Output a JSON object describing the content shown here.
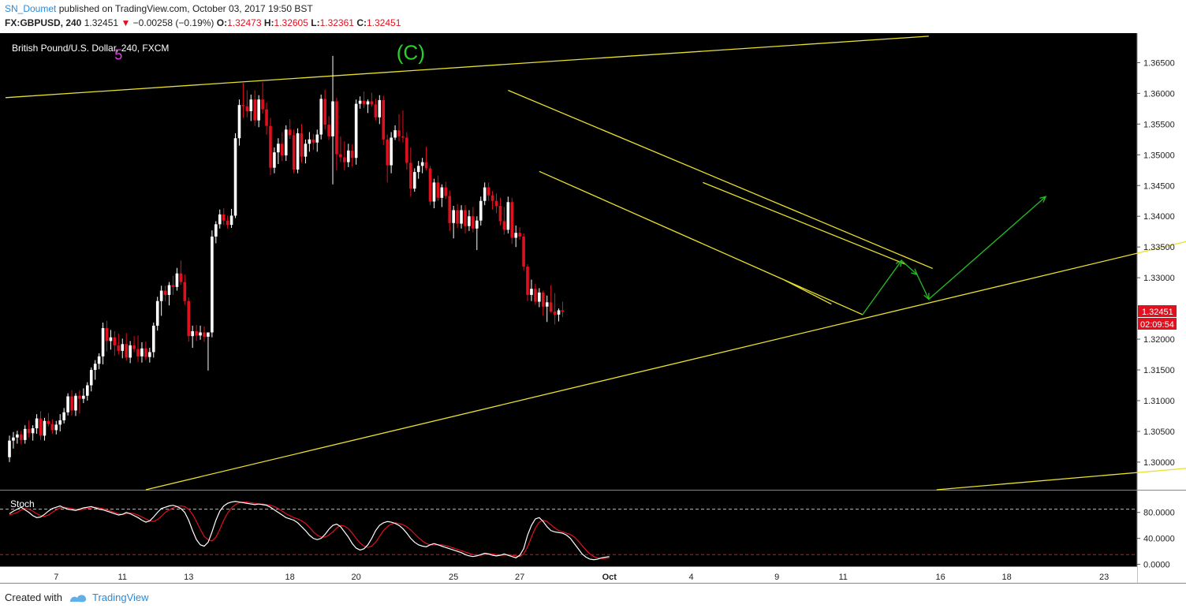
{
  "header": {
    "author": "SN_Doumet",
    "published_text": "published on TradingView.com, October 03, 2017 19:50 BST",
    "symbol": "FX:GBPUSD, 240",
    "last": "1.32451",
    "change": "−0.00258 (−0.19%)",
    "open_label": "O:",
    "open": "1.32473",
    "high_label": "H:",
    "high": "1.32605",
    "low_label": "L:",
    "low": "1.32361",
    "close_label": "C:",
    "close": "1.32451"
  },
  "footer": {
    "created_with": "Created with",
    "brand": "TradingView"
  },
  "colors": {
    "background": "#000000",
    "up": "#ffffff",
    "down": "#e0101e",
    "trendline": "#e8e030",
    "arrow": "#22c022",
    "wave5": "#e040e0",
    "waveC": "#28d028",
    "stoch_k": "#ffffff",
    "stoch_d": "#e0101e"
  },
  "chart_data": {
    "type": "candlestick",
    "title": "British Pound/U.S. Dollar, 240, FXCM",
    "ylim": [
      1.2955,
      1.3698
    ],
    "y_ticks": [
      "1.36500",
      "1.36000",
      "1.35500",
      "1.35000",
      "1.34500",
      "1.34000",
      "1.33500",
      "1.33000",
      "1.32000",
      "1.31500",
      "1.31000",
      "1.30500",
      "1.30000"
    ],
    "x_ticks": [
      {
        "label": "7",
        "i": 12
      },
      {
        "label": "11",
        "i": 29
      },
      {
        "label": "13",
        "i": 46
      },
      {
        "label": "18",
        "i": 72
      },
      {
        "label": "20",
        "i": 89
      },
      {
        "label": "25",
        "i": 114
      },
      {
        "label": "27",
        "i": 131
      },
      {
        "label": "Oct",
        "i": 154
      },
      {
        "label": "4",
        "i": 175
      },
      {
        "label": "9",
        "i": 197
      },
      {
        "label": "11",
        "i": 214
      },
      {
        "label": "16",
        "i": 239
      },
      {
        "label": "18",
        "i": 256
      },
      {
        "label": "23",
        "i": 281
      }
    ],
    "price_badge": "1.32451",
    "timer_badge": "02:09:54",
    "wave_labels": [
      {
        "text": "5",
        "i": 28,
        "price": 1.3663
      },
      {
        "text": "(C)",
        "i": 103,
        "price": 1.3668
      }
    ],
    "candles": [
      [
        1.3008,
        1.3043,
        1.3,
        1.3035
      ],
      [
        1.3035,
        1.3049,
        1.3022,
        1.304
      ],
      [
        1.304,
        1.3051,
        1.303,
        1.3045
      ],
      [
        1.3045,
        1.3051,
        1.3029,
        1.3036
      ],
      [
        1.3036,
        1.306,
        1.303,
        1.3054
      ],
      [
        1.3054,
        1.3068,
        1.304,
        1.3047
      ],
      [
        1.3047,
        1.306,
        1.3035,
        1.3055
      ],
      [
        1.3055,
        1.3078,
        1.3046,
        1.3071
      ],
      [
        1.3071,
        1.3083,
        1.3036,
        1.3043
      ],
      [
        1.3043,
        1.3072,
        1.3035,
        1.3067
      ],
      [
        1.3067,
        1.308,
        1.3058,
        1.3062
      ],
      [
        1.3062,
        1.307,
        1.3046,
        1.3052
      ],
      [
        1.3052,
        1.3067,
        1.3045,
        1.3061
      ],
      [
        1.3061,
        1.3078,
        1.305,
        1.3068
      ],
      [
        1.3068,
        1.3088,
        1.3063,
        1.3081
      ],
      [
        1.3081,
        1.3112,
        1.3076,
        1.3107
      ],
      [
        1.3107,
        1.3117,
        1.3076,
        1.3084
      ],
      [
        1.3084,
        1.3112,
        1.3075,
        1.3108
      ],
      [
        1.3108,
        1.3117,
        1.3079,
        1.3103
      ],
      [
        1.3103,
        1.312,
        1.3096,
        1.3108
      ],
      [
        1.3108,
        1.313,
        1.31,
        1.3125
      ],
      [
        1.3125,
        1.3154,
        1.3115,
        1.315
      ],
      [
        1.315,
        1.3166,
        1.3134,
        1.316
      ],
      [
        1.316,
        1.3177,
        1.3151,
        1.3172
      ],
      [
        1.3172,
        1.3227,
        1.3159,
        1.3218
      ],
      [
        1.3218,
        1.323,
        1.318,
        1.3197
      ],
      [
        1.3197,
        1.3215,
        1.3183,
        1.3203
      ],
      [
        1.3203,
        1.3213,
        1.3173,
        1.319
      ],
      [
        1.319,
        1.3209,
        1.3175,
        1.3181
      ],
      [
        1.3181,
        1.3201,
        1.3169,
        1.3192
      ],
      [
        1.3192,
        1.321,
        1.3165,
        1.317
      ],
      [
        1.317,
        1.3197,
        1.3161,
        1.319
      ],
      [
        1.319,
        1.3205,
        1.3179,
        1.3184
      ],
      [
        1.3184,
        1.3206,
        1.3163,
        1.3172
      ],
      [
        1.3172,
        1.3195,
        1.3162,
        1.3185
      ],
      [
        1.3185,
        1.3196,
        1.3166,
        1.3171
      ],
      [
        1.3171,
        1.3186,
        1.3162,
        1.3179
      ],
      [
        1.3179,
        1.3227,
        1.317,
        1.3222
      ],
      [
        1.3222,
        1.3269,
        1.3214,
        1.3262
      ],
      [
        1.3262,
        1.3287,
        1.3238,
        1.3279
      ],
      [
        1.3279,
        1.3287,
        1.3262,
        1.3272
      ],
      [
        1.3272,
        1.3293,
        1.3255,
        1.3288
      ],
      [
        1.3288,
        1.3303,
        1.3272,
        1.3285
      ],
      [
        1.3285,
        1.3316,
        1.3279,
        1.3307
      ],
      [
        1.3307,
        1.3328,
        1.3288,
        1.3293
      ],
      [
        1.3293,
        1.3305,
        1.3256,
        1.3262
      ],
      [
        1.3262,
        1.3268,
        1.3196,
        1.3205
      ],
      [
        1.3205,
        1.3222,
        1.3186,
        1.3213
      ],
      [
        1.3213,
        1.3223,
        1.3197,
        1.3206
      ],
      [
        1.3206,
        1.3222,
        1.3199,
        1.3211
      ],
      [
        1.3211,
        1.3221,
        1.3196,
        1.3204
      ],
      [
        1.3204,
        1.3211,
        1.3149,
        1.3211
      ],
      [
        1.3211,
        1.3377,
        1.3203,
        1.3367
      ],
      [
        1.3367,
        1.3392,
        1.3356,
        1.3387
      ],
      [
        1.3387,
        1.3411,
        1.338,
        1.3403
      ],
      [
        1.3403,
        1.3413,
        1.3386,
        1.3393
      ],
      [
        1.3393,
        1.3401,
        1.338,
        1.3386
      ],
      [
        1.3386,
        1.3412,
        1.3381,
        1.3401
      ],
      [
        1.3401,
        1.3535,
        1.3397,
        1.3527
      ],
      [
        1.3527,
        1.359,
        1.3515,
        1.3581
      ],
      [
        1.3581,
        1.3617,
        1.356,
        1.3579
      ],
      [
        1.3579,
        1.3605,
        1.3561,
        1.3571
      ],
      [
        1.3571,
        1.3598,
        1.3555,
        1.359
      ],
      [
        1.359,
        1.3605,
        1.3547,
        1.3556
      ],
      [
        1.3556,
        1.3597,
        1.3545,
        1.359
      ],
      [
        1.359,
        1.3618,
        1.3567,
        1.3574
      ],
      [
        1.3574,
        1.3585,
        1.3533,
        1.3547
      ],
      [
        1.3547,
        1.356,
        1.3467,
        1.3479
      ],
      [
        1.3479,
        1.3512,
        1.347,
        1.3504
      ],
      [
        1.3504,
        1.3527,
        1.3485,
        1.3518
      ],
      [
        1.3518,
        1.3537,
        1.349,
        1.3499
      ],
      [
        1.3499,
        1.3548,
        1.349,
        1.3541
      ],
      [
        1.3541,
        1.3558,
        1.3526,
        1.3532
      ],
      [
        1.3532,
        1.3541,
        1.347,
        1.3476
      ],
      [
        1.3476,
        1.3543,
        1.347,
        1.3535
      ],
      [
        1.3535,
        1.355,
        1.3487,
        1.3497
      ],
      [
        1.3497,
        1.3525,
        1.3486,
        1.3518
      ],
      [
        1.3518,
        1.3537,
        1.3505,
        1.3525
      ],
      [
        1.3525,
        1.3534,
        1.3508,
        1.352
      ],
      [
        1.352,
        1.3541,
        1.3505,
        1.3533
      ],
      [
        1.3533,
        1.3598,
        1.3525,
        1.3591
      ],
      [
        1.3591,
        1.3606,
        1.3541,
        1.3549
      ],
      [
        1.3549,
        1.3563,
        1.3524,
        1.353
      ],
      [
        1.353,
        1.3661,
        1.3452,
        1.3587
      ],
      [
        1.3587,
        1.3593,
        1.3475,
        1.3501
      ],
      [
        1.3501,
        1.353,
        1.3488,
        1.3496
      ],
      [
        1.3496,
        1.3522,
        1.3475,
        1.3488
      ],
      [
        1.3488,
        1.3518,
        1.348,
        1.3507
      ],
      [
        1.3507,
        1.3517,
        1.3481,
        1.3495
      ],
      [
        1.3495,
        1.359,
        1.3484,
        1.3583
      ],
      [
        1.3583,
        1.3595,
        1.3575,
        1.3588
      ],
      [
        1.3588,
        1.3603,
        1.3576,
        1.3582
      ],
      [
        1.3582,
        1.359,
        1.3568,
        1.3587
      ],
      [
        1.3587,
        1.3601,
        1.3578,
        1.3582
      ],
      [
        1.3582,
        1.3591,
        1.3556,
        1.3561
      ],
      [
        1.3561,
        1.3597,
        1.355,
        1.3589
      ],
      [
        1.3589,
        1.3596,
        1.3516,
        1.3525
      ],
      [
        1.3525,
        1.3533,
        1.3455,
        1.3483
      ],
      [
        1.3483,
        1.3537,
        1.347,
        1.3528
      ],
      [
        1.3528,
        1.3548,
        1.3524,
        1.354
      ],
      [
        1.354,
        1.3566,
        1.3522,
        1.353
      ],
      [
        1.353,
        1.3572,
        1.352,
        1.3528
      ],
      [
        1.3528,
        1.3537,
        1.3476,
        1.3487
      ],
      [
        1.3487,
        1.3512,
        1.3432,
        1.3445
      ],
      [
        1.3445,
        1.3478,
        1.344,
        1.3472
      ],
      [
        1.3472,
        1.349,
        1.3461,
        1.3482
      ],
      [
        1.3482,
        1.3495,
        1.347,
        1.3488
      ],
      [
        1.3488,
        1.3513,
        1.3475,
        1.3478
      ],
      [
        1.3478,
        1.3482,
        1.3418,
        1.3424
      ],
      [
        1.3424,
        1.3461,
        1.3413,
        1.3455
      ],
      [
        1.3455,
        1.3466,
        1.3425,
        1.343
      ],
      [
        1.343,
        1.3452,
        1.3415,
        1.3447
      ],
      [
        1.3447,
        1.3456,
        1.3428,
        1.3433
      ],
      [
        1.3433,
        1.3442,
        1.3376,
        1.3389
      ],
      [
        1.3389,
        1.3417,
        1.3364,
        1.341
      ],
      [
        1.341,
        1.342,
        1.3381,
        1.3388
      ],
      [
        1.3388,
        1.3418,
        1.338,
        1.341
      ],
      [
        1.341,
        1.3418,
        1.3372,
        1.3384
      ],
      [
        1.3384,
        1.341,
        1.3376,
        1.34
      ],
      [
        1.34,
        1.3415,
        1.3374,
        1.338
      ],
      [
        1.338,
        1.34,
        1.3345,
        1.3393
      ],
      [
        1.3393,
        1.3432,
        1.3385,
        1.3425
      ],
      [
        1.3425,
        1.3455,
        1.3418,
        1.3447
      ],
      [
        1.3447,
        1.3455,
        1.3425,
        1.3434
      ],
      [
        1.3434,
        1.3441,
        1.3411,
        1.3425
      ],
      [
        1.3425,
        1.3437,
        1.3405,
        1.3417
      ],
      [
        1.3417,
        1.343,
        1.3385,
        1.3392
      ],
      [
        1.3392,
        1.3415,
        1.337,
        1.3378
      ],
      [
        1.3378,
        1.3432,
        1.3372,
        1.3423
      ],
      [
        1.3423,
        1.343,
        1.3355,
        1.3365
      ],
      [
        1.3365,
        1.3385,
        1.335,
        1.3373
      ],
      [
        1.3373,
        1.3382,
        1.3362,
        1.3367
      ],
      [
        1.3367,
        1.3372,
        1.3312,
        1.3318
      ],
      [
        1.3318,
        1.3322,
        1.3262,
        1.3272
      ],
      [
        1.3272,
        1.3297,
        1.3262,
        1.3282
      ],
      [
        1.3282,
        1.329,
        1.3256,
        1.3261
      ],
      [
        1.3261,
        1.3283,
        1.3252,
        1.3276
      ],
      [
        1.3276,
        1.3279,
        1.3238,
        1.3253
      ],
      [
        1.3253,
        1.3271,
        1.3228,
        1.326
      ],
      [
        1.326,
        1.3288,
        1.3243,
        1.3245
      ],
      [
        1.3245,
        1.3275,
        1.3224,
        1.324
      ],
      [
        1.324,
        1.325,
        1.3229,
        1.3247
      ],
      [
        1.3247,
        1.3261,
        1.3236,
        1.3245
      ]
    ],
    "trendlines": [
      {
        "points": [
          [
            1.3593,
            -1
          ],
          [
            1.3693,
            236
          ]
        ]
      },
      {
        "points": [
          [
            1.2955,
            35
          ],
          [
            1.3454,
            365
          ]
        ]
      },
      {
        "points": [
          [
            1.2955,
            238
          ],
          [
            1.3024,
            365
          ]
        ]
      },
      {
        "points": [
          [
            1.3605,
            128
          ],
          [
            1.3315,
            237
          ]
        ]
      },
      {
        "points": [
          [
            1.3473,
            136
          ],
          [
            1.324,
            219
          ]
        ]
      },
      {
        "points": [
          [
            1.3455,
            178
          ],
          [
            1.3322,
            230
          ]
        ]
      },
      {
        "points": [
          [
            1.3296,
            199
          ],
          [
            1.3257,
            211
          ]
        ]
      }
    ],
    "arrows": [
      {
        "points": [
          [
            1.324,
            219
          ],
          [
            1.3328,
            229
          ],
          [
            1.3305,
            233
          ],
          [
            1.3265,
            236
          ]
        ]
      },
      {
        "points": [
          [
            1.3265,
            236
          ],
          [
            1.3432,
            266
          ]
        ]
      }
    ],
    "stoch": {
      "label": "Stoch",
      "ylim": [
        -3,
        104
      ],
      "y_ticks": [
        "80.0000",
        "40.0000",
        "0.0000"
      ],
      "upper": 85,
      "lower": 15,
      "k": [
        78,
        82,
        85,
        88,
        84,
        80,
        75,
        72,
        73,
        77,
        82,
        86,
        88,
        90,
        87,
        85,
        84,
        83,
        85,
        87,
        88,
        89,
        87,
        85,
        84,
        82,
        80,
        78,
        76,
        77,
        80,
        78,
        75,
        72,
        68,
        65,
        67,
        73,
        80,
        86,
        88,
        90,
        91,
        89,
        86,
        80,
        68,
        52,
        38,
        30,
        28,
        34,
        50,
        68,
        82,
        90,
        94,
        96,
        97,
        96,
        95,
        94,
        93,
        92,
        93,
        92,
        91,
        88,
        84,
        80,
        76,
        72,
        70,
        68,
        64,
        58,
        52,
        45,
        40,
        38,
        40,
        46,
        54,
        60,
        62,
        58,
        50,
        42,
        32,
        25,
        22,
        24,
        30,
        40,
        52,
        60,
        64,
        66,
        65,
        63,
        60,
        55,
        48,
        40,
        34,
        30,
        28,
        27,
        30,
        32,
        30,
        28,
        26,
        24,
        22,
        20,
        18,
        15,
        13,
        12,
        13,
        15,
        17,
        16,
        14,
        13,
        14,
        16,
        14,
        12,
        10,
        14,
        24,
        45,
        60,
        70,
        72,
        66,
        58,
        52,
        50,
        49,
        48,
        45,
        40,
        32,
        24,
        16,
        11,
        8,
        7,
        8,
        10,
        11,
        12
      ],
      "d": [
        76,
        78,
        80,
        84,
        86,
        85,
        82,
        78,
        75,
        74,
        76,
        80,
        84,
        87,
        88,
        87,
        86,
        85,
        84,
        85,
        86,
        87,
        88,
        87,
        86,
        84,
        82,
        80,
        78,
        77,
        78,
        79,
        78,
        76,
        73,
        70,
        67,
        66,
        69,
        74,
        80,
        84,
        87,
        89,
        90,
        89,
        85,
        77,
        66,
        54,
        43,
        38,
        36,
        42,
        54,
        68,
        79,
        87,
        92,
        95,
        96,
        96,
        95,
        94,
        93,
        93,
        92,
        91,
        89,
        86,
        82,
        78,
        75,
        72,
        70,
        67,
        63,
        57,
        50,
        45,
        42,
        42,
        45,
        50,
        56,
        60,
        59,
        55,
        48,
        40,
        33,
        28,
        26,
        28,
        34,
        43,
        52,
        58,
        62,
        64,
        63,
        61,
        58,
        53,
        47,
        41,
        36,
        32,
        30,
        30,
        30,
        30,
        29,
        27,
        25,
        23,
        21,
        19,
        17,
        15,
        14,
        14,
        15,
        16,
        16,
        15,
        14,
        14,
        15,
        14,
        13,
        12,
        16,
        27,
        42,
        56,
        65,
        68,
        66,
        61,
        56,
        52,
        50,
        48,
        46,
        42,
        36,
        29,
        22,
        16,
        12,
        10,
        9,
        9,
        10
      ]
    }
  }
}
